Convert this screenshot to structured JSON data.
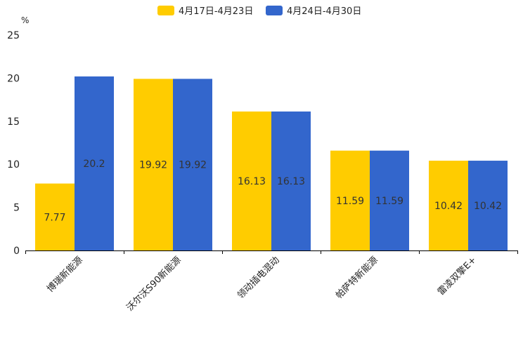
{
  "chart_data": {
    "type": "bar",
    "title": "",
    "unit": "%",
    "xlabel": "",
    "ylabel": "%",
    "ylim": [
      0,
      25
    ],
    "yticks": [
      0,
      5,
      10,
      15,
      20,
      25
    ],
    "grid": false,
    "legend_position": "top-center",
    "categories": [
      "博瑞新能源",
      "沃尔沃S90新能源",
      "领动插电混动",
      "帕萨特新能源",
      "雷凌双擎E+"
    ],
    "series": [
      {
        "name": "4月17日-4月23日",
        "color": "#ffcc00",
        "values": [
          7.77,
          19.92,
          16.13,
          11.59,
          10.42
        ]
      },
      {
        "name": "4月24日-4月30日",
        "color": "#3366cc",
        "values": [
          20.2,
          19.92,
          16.13,
          11.59,
          10.42
        ]
      }
    ]
  }
}
